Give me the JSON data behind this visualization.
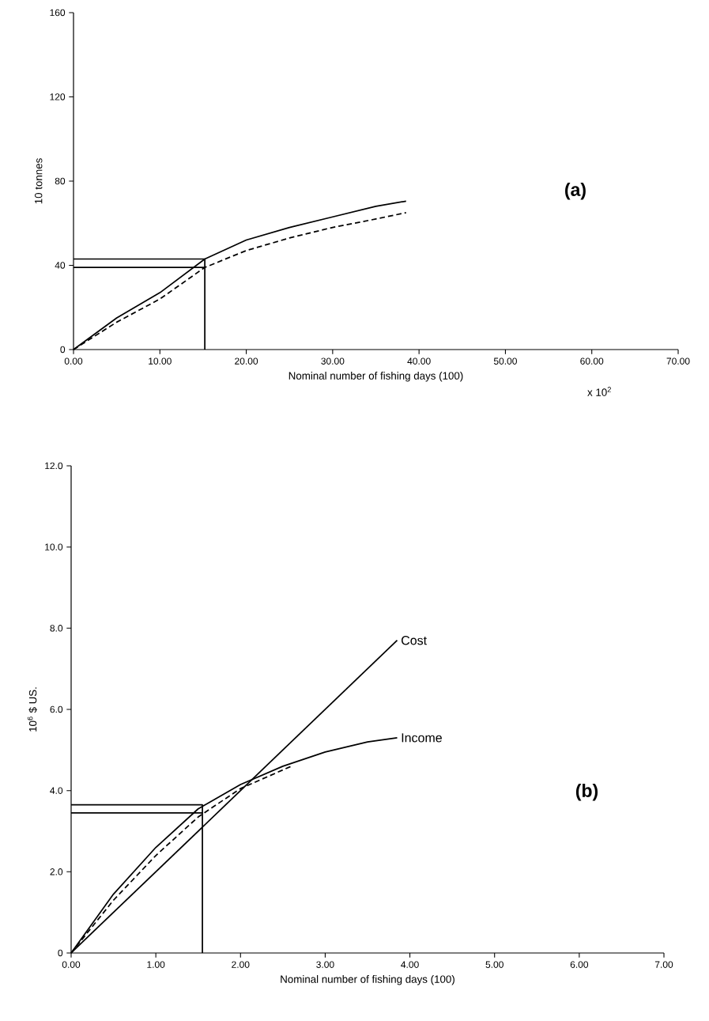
{
  "chart_data": [
    {
      "type": "line",
      "xlabel": "Nominal number of fishing days (100)",
      "ylabel": "10 tonnes",
      "xlim": [
        0,
        70
      ],
      "ylim": [
        0,
        160
      ],
      "xticks": [
        {
          "value": 0,
          "label": "0.00"
        },
        {
          "value": 10,
          "label": "10.00"
        },
        {
          "value": 20,
          "label": "20.00"
        },
        {
          "value": 30,
          "label": "30.00"
        },
        {
          "value": 40,
          "label": "40.00"
        },
        {
          "value": 50,
          "label": "50.00"
        },
        {
          "value": 60,
          "label": "60.00"
        },
        {
          "value": 70,
          "label": "70.00"
        }
      ],
      "yticks": [
        0,
        40,
        80,
        120,
        160
      ],
      "marker": "none",
      "grid": false,
      "annotations": [
        "(a)",
        "x 10$^{2}$"
      ],
      "series": [
        {
          "color": "#000000",
          "line_style": "solid",
          "x": [
            0,
            5,
            10,
            15.2,
            20,
            25,
            30,
            35,
            38.5
          ],
          "values": [
            0,
            15,
            27,
            43,
            52,
            58,
            63,
            68,
            70.5
          ]
        },
        {
          "color": "#000000",
          "line_style": "dashed",
          "x": [
            0,
            5,
            10,
            15.2,
            20,
            25,
            30,
            35,
            38.5
          ],
          "values": [
            0,
            13,
            24,
            39,
            47,
            53,
            58,
            62,
            65
          ]
        },
        {
          "color": "#000000",
          "line_style": "solid",
          "x": [
            0,
            15.2,
            15.2
          ],
          "values": [
            43,
            43,
            0
          ]
        },
        {
          "color": "#000000",
          "line_style": "solid",
          "x": [
            0,
            15.2
          ],
          "values": [
            39,
            39
          ]
        }
      ]
    },
    {
      "type": "line",
      "xlabel": "Nominal number of fishing days (100)",
      "ylabel": "10$^{6}$ $ US.",
      "xlim": [
        0,
        7
      ],
      "ylim": [
        0,
        12
      ],
      "xticks": [
        {
          "value": 0,
          "label": "0.00"
        },
        {
          "value": 1,
          "label": "1.00"
        },
        {
          "value": 2,
          "label": "2.00"
        },
        {
          "value": 3,
          "label": "3.00"
        },
        {
          "value": 4,
          "label": "4.00"
        },
        {
          "value": 5,
          "label": "5.00"
        },
        {
          "value": 6,
          "label": "6.00"
        },
        {
          "value": 7,
          "label": "7.00"
        }
      ],
      "yticks": [
        0,
        {
          "value": 2,
          "label": "2.0"
        },
        {
          "value": 4,
          "label": "4.0"
        },
        {
          "value": 6,
          "label": "6.0"
        },
        {
          "value": 8,
          "label": "8.0"
        },
        {
          "value": 10,
          "label": "10.0"
        },
        {
          "value": 12,
          "label": "12.0"
        }
      ],
      "marker": "none",
      "grid": false,
      "annotations": [
        "(b)"
      ],
      "series": [
        {
          "name": "Cost",
          "color": "#000000",
          "line_style": "solid",
          "x": [
            0,
            3.85
          ],
          "values": [
            0,
            7.7
          ]
        },
        {
          "name": "Income",
          "color": "#000000",
          "line_style": "solid",
          "x": [
            0,
            0.5,
            1,
            1.5,
            2,
            2.5,
            3,
            3.5,
            3.85
          ],
          "values": [
            0,
            1.45,
            2.6,
            3.55,
            4.15,
            4.6,
            4.95,
            5.2,
            5.3
          ]
        },
        {
          "color": "#000000",
          "line_style": "dashed",
          "x": [
            0,
            0.5,
            1,
            1.5,
            2,
            2.6
          ],
          "values": [
            0,
            1.3,
            2.4,
            3.35,
            4.05,
            4.6
          ]
        },
        {
          "color": "#000000",
          "line_style": "solid",
          "x": [
            0,
            1.55,
            1.55
          ],
          "values": [
            3.65,
            3.65,
            0
          ]
        },
        {
          "color": "#000000",
          "line_style": "solid",
          "x": [
            0,
            1.55
          ],
          "values": [
            3.45,
            3.45
          ]
        }
      ]
    }
  ]
}
